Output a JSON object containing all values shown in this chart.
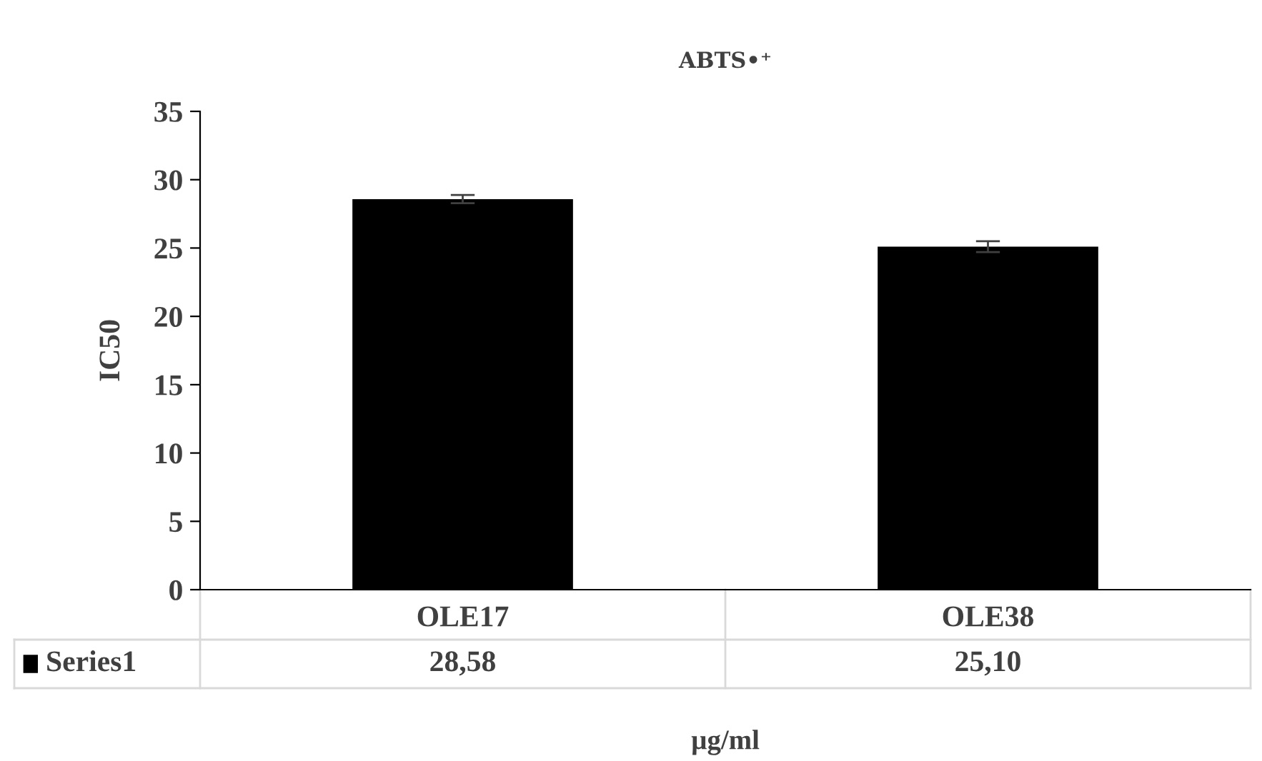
{
  "chart_data": {
    "type": "bar",
    "title": "ABTS•⁺",
    "xlabel": "µg/ml",
    "ylabel": "IC50",
    "categories": [
      "OLE17",
      "OLE38"
    ],
    "series": [
      {
        "name": "Series1",
        "color": "#000000",
        "values": [
          28.58,
          25.1
        ],
        "errors": [
          0.3,
          0.4
        ],
        "value_labels": [
          "28,58",
          "25,10"
        ]
      }
    ],
    "ylim": [
      0,
      35
    ],
    "yticks": [
      0,
      5,
      10,
      15,
      20,
      25,
      30,
      35
    ],
    "grid": false,
    "legend": "bottom"
  }
}
